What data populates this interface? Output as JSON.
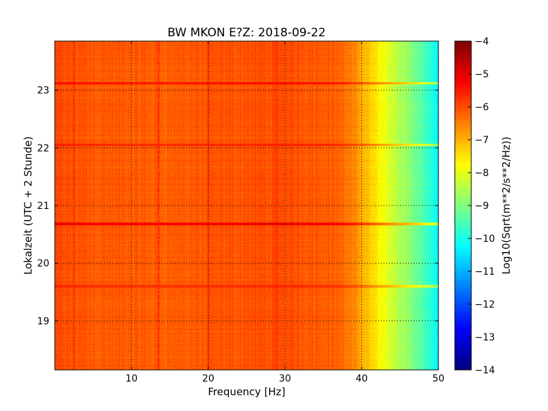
{
  "chart_data": {
    "type": "heatmap",
    "title": "BW MKON E?Z: 2018-09-22",
    "xlabel": "Frequency [Hz]",
    "ylabel": "Lokalzeit (UTC + 2 Stunde)",
    "xlim": [
      0,
      50
    ],
    "ylim": [
      23.85,
      18.15
    ],
    "xticks": [
      10,
      20,
      30,
      40,
      50
    ],
    "yticks": [
      19,
      20,
      21,
      22,
      23
    ],
    "grid": true,
    "colormap": "jet",
    "colorbar": {
      "label": "Log10(Sqrt(m**2/s**2/Hz))",
      "min": -14,
      "max": -4,
      "ticks": [
        -4,
        -5,
        -6,
        -7,
        -8,
        -9,
        -10,
        -11,
        -12,
        -13,
        -14
      ]
    },
    "frequency_profile": {
      "frequency_hz": [
        0,
        5,
        10,
        15,
        20,
        25,
        30,
        35,
        37,
        38,
        39,
        40,
        41,
        42,
        43,
        44,
        45,
        46,
        47,
        48,
        49,
        50
      ],
      "log10_amplitude": [
        -6.0,
        -6.1,
        -6.15,
        -6.15,
        -6.1,
        -6.05,
        -6.0,
        -6.1,
        -6.2,
        -6.4,
        -6.6,
        -6.9,
        -7.2,
        -7.6,
        -7.9,
        -8.2,
        -8.5,
        -8.8,
        -9.1,
        -9.5,
        -9.9,
        -10.3
      ]
    },
    "features": [
      {
        "type": "horizontal_band",
        "time": 20.68,
        "log10_amplitude": -5.1
      },
      {
        "type": "horizontal_band",
        "time": 22.05,
        "log10_amplitude": -5.5
      },
      {
        "type": "horizontal_band",
        "time": 19.6,
        "log10_amplitude": -5.6
      },
      {
        "type": "horizontal_band",
        "time": 23.12,
        "log10_amplitude": -5.3
      },
      {
        "type": "vertical_line",
        "frequency_hz": 2.5,
        "log10_amplitude": -5.6
      },
      {
        "type": "vertical_line",
        "frequency_hz": 13.5,
        "log10_amplitude": -5.6
      },
      {
        "type": "vertical_line",
        "frequency_hz": 20.0,
        "log10_amplitude": -5.7
      },
      {
        "type": "vertical_line",
        "frequency_hz": 29.0,
        "log10_amplitude": -5.7
      }
    ]
  }
}
